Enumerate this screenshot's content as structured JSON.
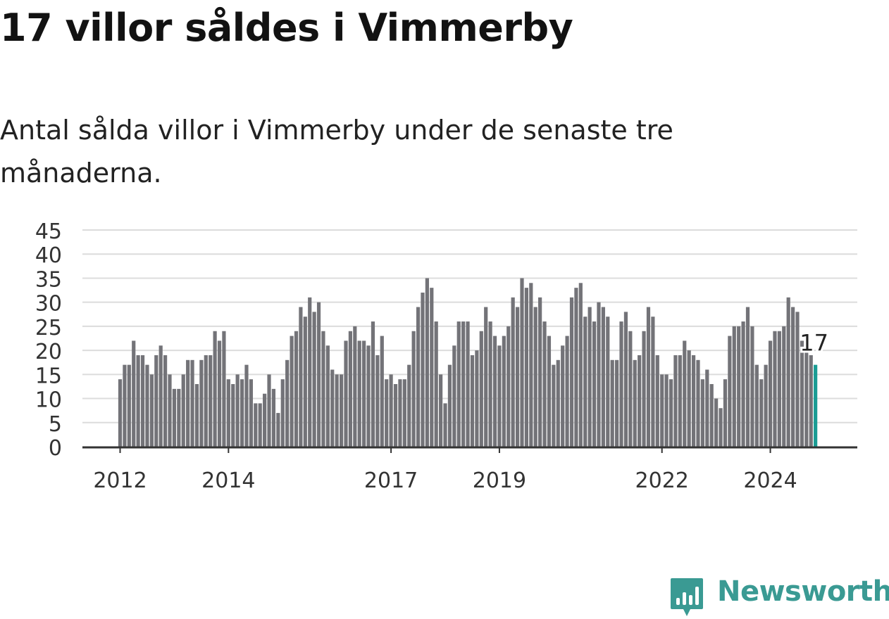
{
  "header": {
    "title": "17 villor såldes i Vimmerby",
    "subtitle": "Antal sålda villor i Vimmerby under de senaste tre månaderna."
  },
  "brand": {
    "name": "Newsworthy",
    "icon": "newsworthy-logo-icon",
    "color": "#3a9a93"
  },
  "colors": {
    "bar": "#737378",
    "highlight": "#1a9c94",
    "grid": "#dcdcdc",
    "axis": "#333333"
  },
  "chart_data": {
    "type": "bar",
    "title": "17 villor såldes i Vimmerby",
    "subtitle": "Antal sålda villor i Vimmerby under de senaste tre månaderna.",
    "xlabel": "",
    "ylabel": "",
    "ylim": [
      0,
      45
    ],
    "yticks": [
      0,
      5,
      10,
      15,
      20,
      25,
      30,
      35,
      40,
      45
    ],
    "x_start": "2012-01",
    "x_ticks": [
      "2012",
      "2014",
      "2017",
      "2019",
      "2022",
      "2024"
    ],
    "grid": true,
    "values": [
      14,
      17,
      17,
      22,
      19,
      19,
      17,
      15,
      19,
      21,
      19,
      15,
      12,
      12,
      15,
      18,
      18,
      13,
      18,
      19,
      19,
      24,
      22,
      24,
      14,
      13,
      15,
      14,
      17,
      14,
      9,
      9,
      11,
      15,
      12,
      7,
      14,
      18,
      23,
      24,
      29,
      27,
      31,
      28,
      30,
      24,
      21,
      16,
      15,
      15,
      22,
      24,
      25,
      22,
      22,
      21,
      26,
      19,
      23,
      14,
      15,
      13,
      14,
      14,
      17,
      24,
      29,
      32,
      35,
      33,
      26,
      15,
      9,
      17,
      21,
      26,
      26,
      26,
      19,
      20,
      24,
      29,
      26,
      23,
      21,
      23,
      25,
      31,
      29,
      35,
      33,
      34,
      29,
      31,
      26,
      23,
      17,
      18,
      21,
      23,
      31,
      33,
      34,
      27,
      29,
      26,
      30,
      29,
      27,
      18,
      18,
      26,
      28,
      24,
      18,
      19,
      24,
      29,
      27,
      19,
      15,
      15,
      14,
      19,
      19,
      22,
      20,
      19,
      18,
      14,
      16,
      13,
      10,
      8,
      14,
      23,
      25,
      25,
      26,
      29,
      25,
      17,
      14,
      17,
      22,
      24,
      24,
      25,
      31,
      29,
      28,
      22,
      20,
      19,
      17
    ],
    "last_value_label": "17"
  }
}
